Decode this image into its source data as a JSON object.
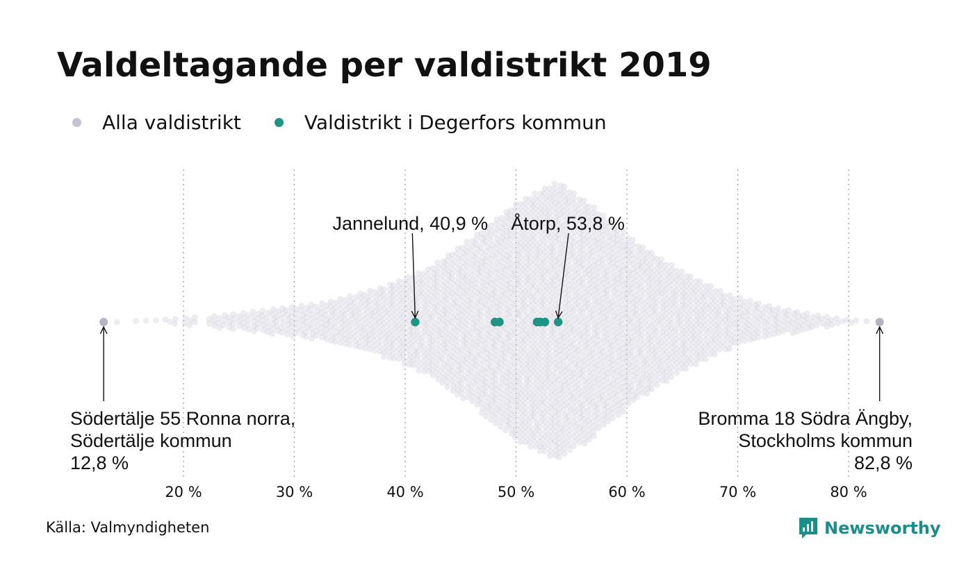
{
  "title": "Valdeltagande per valdistrikt 2019",
  "legend": [
    {
      "label": "Alla valdistrikt",
      "color": "#c6c3cf"
    },
    {
      "label": "Valdistrikt i Degerfors kommun",
      "color": "#1e9484"
    }
  ],
  "source": "Källa: Valmyndigheten",
  "logo": {
    "text": "Newsworthy",
    "icon": "bar-chart-speech-bubble-icon",
    "color": "#1e8d8a"
  },
  "chart_data": {
    "type": "scatter",
    "subtype": "beeswarm",
    "xlabel": "",
    "ylabel": "",
    "xlim": [
      12,
      84
    ],
    "x_ticks": [
      20,
      30,
      40,
      50,
      60,
      70,
      80
    ],
    "x_tick_labels": [
      "20 %",
      "30 %",
      "40 %",
      "50 %",
      "60 %",
      "70 %",
      "80 %"
    ],
    "grid": "vertical dotted",
    "series": [
      {
        "name": "Alla valdistrikt",
        "color": "#c6c3cf",
        "note_values": "distribution of all districts, min 12.8, max 82.8, peak near 53.8"
      },
      {
        "name": "Valdistrikt i Degerfors kommun",
        "color": "#1e9484",
        "values": [
          40.9,
          48.1,
          48.5,
          51.9,
          52.2,
          52.6,
          53.8
        ]
      }
    ],
    "extremes": [
      12.8,
      82.8
    ],
    "annotations": [
      {
        "lines": [
          "Jannelund, 40,9 %"
        ],
        "x": 40.9
      },
      {
        "lines": [
          "Åtorp, 53,8 %"
        ],
        "x": 53.8
      },
      {
        "lines": [
          "Södertälje 55 Ronna norra,",
          "Södertälje kommun",
          "12,8 %"
        ],
        "x": 12.8
      },
      {
        "lines": [
          "Bromma 18 Södra Ängby,",
          "Stockholms kommun",
          "82,8 %"
        ],
        "x": 82.8
      }
    ]
  }
}
